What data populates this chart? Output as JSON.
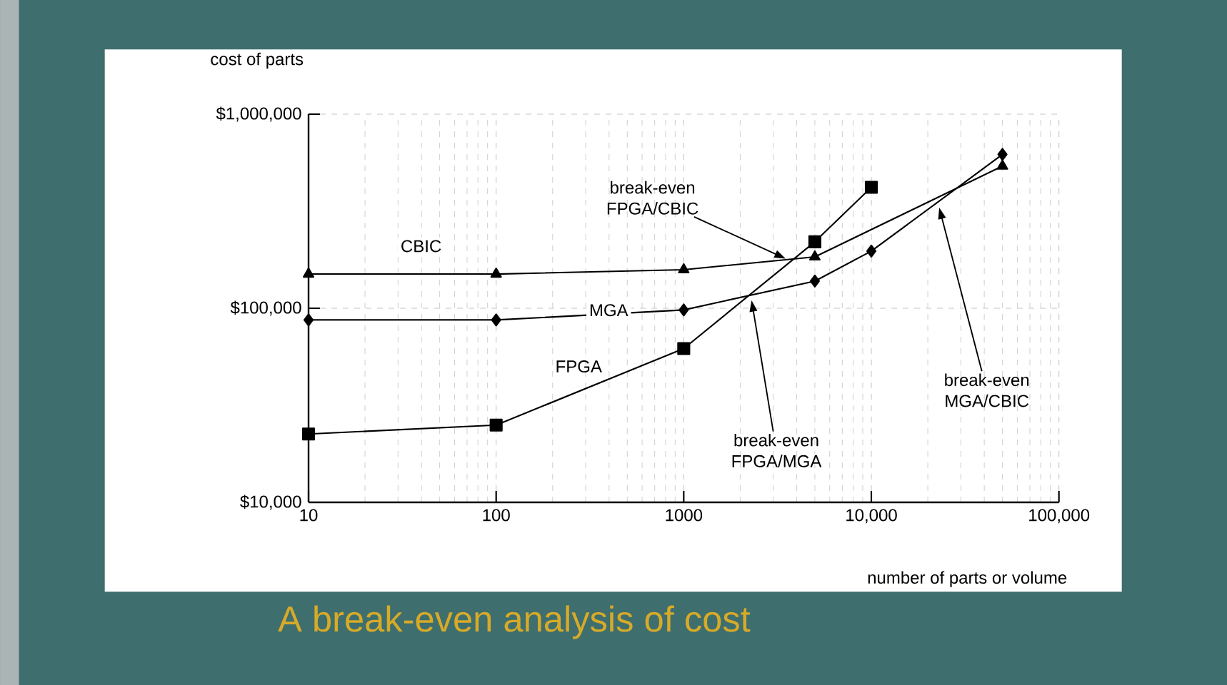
{
  "chart_data": {
    "type": "line",
    "title": "A break-even analysis of cost",
    "xlabel": "number of parts or volume",
    "ylabel": "cost of parts",
    "log": "xy",
    "xlim": [
      10,
      100000
    ],
    "ylim": [
      10000,
      1000000
    ],
    "xticks": [
      10,
      100,
      1000,
      {
        "value": 10000,
        "label": "10,000"
      },
      {
        "value": 100000,
        "label": "100,000"
      }
    ],
    "yticks": [
      {
        "value": 10000,
        "label": "$10,000"
      },
      {
        "value": 100000,
        "label": "$100,000"
      },
      {
        "value": 1000000,
        "label": "$1,000,000"
      }
    ],
    "grid": true,
    "legend": false,
    "series": [
      {
        "name": "CBIC",
        "color": "#000000",
        "marker": "triangle",
        "x": [
          10,
          100,
          1000,
          5000,
          50000
        ],
        "values": [
          150000,
          150000,
          158000,
          184000,
          540000
        ]
      },
      {
        "name": "MGA",
        "color": "#000000",
        "marker": "diamond",
        "x": [
          10,
          100,
          1000,
          5000,
          10000,
          50000
        ],
        "values": [
          87000,
          87000,
          98000,
          138000,
          197000,
          620000
        ]
      },
      {
        "name": "FPGA",
        "color": "#000000",
        "marker": "square",
        "x": [
          10,
          100,
          1000,
          5000,
          10000
        ],
        "values": [
          22500,
          25000,
          62000,
          220000,
          420000
        ]
      }
    ],
    "annotations": [
      {
        "text": "break-even FPGA/CBIC",
        "x": 3500,
        "y": 180000
      },
      {
        "text": "break-even FPGA/MGA",
        "x": 2300,
        "y": 110000
      },
      {
        "text": "break-even MGA/CBIC",
        "x": 23000,
        "y": 330000
      }
    ]
  }
}
